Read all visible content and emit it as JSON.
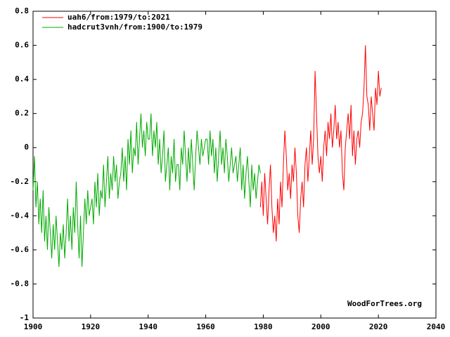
{
  "chart_data": {
    "type": "line",
    "series": [
      {
        "name": "uah6/from:1979/to:2021",
        "color": "#ff0000",
        "x": [
          1979,
          1979.5,
          1980,
          1980.5,
          1981,
          1981.5,
          1982,
          1982.5,
          1983,
          1983.5,
          1984,
          1984.5,
          1985,
          1985.5,
          1986,
          1986.5,
          1987,
          1987.5,
          1988,
          1988.5,
          1989,
          1989.5,
          1990,
          1990.5,
          1991,
          1991.5,
          1992,
          1992.5,
          1993,
          1993.5,
          1994,
          1994.5,
          1995,
          1995.5,
          1996,
          1996.5,
          1997,
          1997.5,
          1998,
          1998.5,
          1999,
          1999.5,
          2000,
          2000.5,
          2001,
          2001.5,
          2002,
          2002.5,
          2003,
          2003.5,
          2004,
          2004.5,
          2005,
          2005.5,
          2006,
          2006.5,
          2007,
          2007.5,
          2008,
          2008.5,
          2009,
          2009.5,
          2010,
          2010.5,
          2011,
          2011.5,
          2012,
          2012.5,
          2013,
          2013.5,
          2014,
          2014.5,
          2015,
          2015.5,
          2016,
          2016.5,
          2017,
          2017.5,
          2018,
          2018.5,
          2019,
          2019.5,
          2020,
          2020.5,
          2021
        ],
        "values": [
          -0.35,
          -0.2,
          -0.4,
          -0.15,
          -0.3,
          -0.45,
          -0.25,
          -0.1,
          -0.35,
          -0.5,
          -0.4,
          -0.55,
          -0.3,
          -0.45,
          -0.2,
          -0.35,
          -0.1,
          0.1,
          -0.05,
          -0.25,
          -0.15,
          -0.3,
          -0.1,
          -0.2,
          0,
          -0.15,
          -0.4,
          -0.5,
          -0.3,
          -0.2,
          -0.35,
          -0.1,
          0,
          -0.2,
          -0.05,
          0.1,
          -0.1,
          0.05,
          0.45,
          0.2,
          -0.05,
          -0.15,
          -0.05,
          -0.2,
          0,
          0.1,
          -0.05,
          0.15,
          0.05,
          0.2,
          0,
          0.1,
          0.25,
          0.05,
          0.15,
          0,
          0.1,
          -0.15,
          -0.25,
          0,
          0.1,
          0.2,
          0.05,
          0.25,
          -0.05,
          0.1,
          -0.1,
          0.05,
          0.1,
          0,
          0.15,
          0.2,
          0.35,
          0.6,
          0.3,
          0.25,
          0.1,
          0.3,
          0.2,
          0.1,
          0.35,
          0.25,
          0.45,
          0.3,
          0.35
        ]
      },
      {
        "name": "hadcrut3vnh/from:1900/to:1979",
        "color": "#00aa00",
        "x": [
          1900,
          1900.5,
          1901,
          1901.5,
          1902,
          1902.5,
          1903,
          1903.5,
          1904,
          1904.5,
          1905,
          1905.5,
          1906,
          1906.5,
          1907,
          1907.5,
          1908,
          1908.5,
          1909,
          1909.5,
          1910,
          1910.5,
          1911,
          1911.5,
          1912,
          1912.5,
          1913,
          1913.5,
          1914,
          1914.5,
          1915,
          1915.5,
          1916,
          1916.5,
          1917,
          1917.5,
          1918,
          1918.5,
          1919,
          1919.5,
          1920,
          1920.5,
          1921,
          1921.5,
          1922,
          1922.5,
          1923,
          1923.5,
          1924,
          1924.5,
          1925,
          1925.5,
          1926,
          1926.5,
          1927,
          1927.5,
          1928,
          1928.5,
          1929,
          1929.5,
          1930,
          1930.5,
          1931,
          1931.5,
          1932,
          1932.5,
          1933,
          1933.5,
          1934,
          1934.5,
          1935,
          1935.5,
          1936,
          1936.5,
          1937,
          1937.5,
          1938,
          1938.5,
          1939,
          1939.5,
          1940,
          1940.5,
          1941,
          1941.5,
          1942,
          1942.5,
          1943,
          1943.5,
          1944,
          1944.5,
          1945,
          1945.5,
          1946,
          1946.5,
          1947,
          1947.5,
          1948,
          1948.5,
          1949,
          1949.5,
          1950,
          1950.5,
          1951,
          1951.5,
          1952,
          1952.5,
          1953,
          1953.5,
          1954,
          1954.5,
          1955,
          1955.5,
          1956,
          1956.5,
          1957,
          1957.5,
          1958,
          1958.5,
          1959,
          1959.5,
          1960,
          1960.5,
          1961,
          1961.5,
          1962,
          1962.5,
          1963,
          1963.5,
          1964,
          1964.5,
          1965,
          1965.5,
          1966,
          1966.5,
          1967,
          1967.5,
          1968,
          1968.5,
          1969,
          1969.5,
          1970,
          1970.5,
          1971,
          1971.5,
          1972,
          1972.5,
          1973,
          1973.5,
          1974,
          1974.5,
          1975,
          1975.5,
          1976,
          1976.5,
          1977,
          1977.5,
          1978,
          1978.5,
          1979
        ],
        "values": [
          -0.25,
          -0.05,
          -0.35,
          -0.2,
          -0.45,
          -0.3,
          -0.5,
          -0.25,
          -0.55,
          -0.4,
          -0.6,
          -0.35,
          -0.5,
          -0.65,
          -0.45,
          -0.6,
          -0.4,
          -0.55,
          -0.7,
          -0.5,
          -0.6,
          -0.45,
          -0.65,
          -0.5,
          -0.3,
          -0.55,
          -0.4,
          -0.6,
          -0.35,
          -0.5,
          -0.2,
          -0.45,
          -0.65,
          -0.4,
          -0.7,
          -0.5,
          -0.3,
          -0.45,
          -0.25,
          -0.4,
          -0.35,
          -0.3,
          -0.45,
          -0.2,
          -0.35,
          -0.15,
          -0.4,
          -0.25,
          -0.3,
          -0.1,
          -0.35,
          -0.2,
          -0.05,
          -0.3,
          -0.15,
          -0.25,
          -0.05,
          -0.2,
          -0.1,
          -0.3,
          -0.2,
          -0.15,
          0,
          -0.2,
          -0.05,
          -0.25,
          0.05,
          -0.1,
          0.1,
          -0.15,
          0,
          -0.05,
          0.15,
          -0.1,
          0.05,
          0.2,
          0,
          0.1,
          -0.05,
          0.15,
          0.05,
          0.05,
          0.2,
          -0.05,
          0.1,
          0,
          0.15,
          -0.1,
          0.05,
          -0.15,
          -0.05,
          0.1,
          -0.2,
          -0.1,
          0,
          -0.25,
          -0.05,
          -0.15,
          0.05,
          -0.2,
          -0.1,
          -0.1,
          -0.25,
          0,
          -0.1,
          0.1,
          -0.05,
          -0.2,
          0,
          -0.15,
          0.05,
          -0.1,
          -0.25,
          -0.05,
          0.1,
          0,
          -0.1,
          0.05,
          -0.05,
          0,
          0.05,
          0.05,
          -0.1,
          0.1,
          -0.05,
          0.05,
          -0.15,
          0,
          -0.2,
          -0.05,
          0.1,
          -0.1,
          0,
          -0.15,
          0.05,
          -0.05,
          -0.2,
          -0.1,
          0,
          -0.15,
          -0.1,
          -0.05,
          -0.2,
          -0.1,
          0,
          -0.25,
          -0.1,
          -0.3,
          -0.15,
          -0.05,
          -0.2,
          -0.35,
          -0.1,
          -0.25,
          -0.15,
          -0.3,
          -0.2,
          -0.1,
          -0.15
        ]
      }
    ],
    "xlim": [
      1900,
      2040
    ],
    "xticks": [
      1900,
      1920,
      1940,
      1960,
      1980,
      2000,
      2020,
      2040
    ],
    "ylim": [
      -1,
      0.8
    ],
    "yticks": [
      -1,
      -0.8,
      -0.6,
      -0.4,
      -0.2,
      0,
      0.2,
      0.4,
      0.6,
      0.8
    ],
    "legend": "upper left",
    "annotation": "WoodForTrees.org"
  }
}
